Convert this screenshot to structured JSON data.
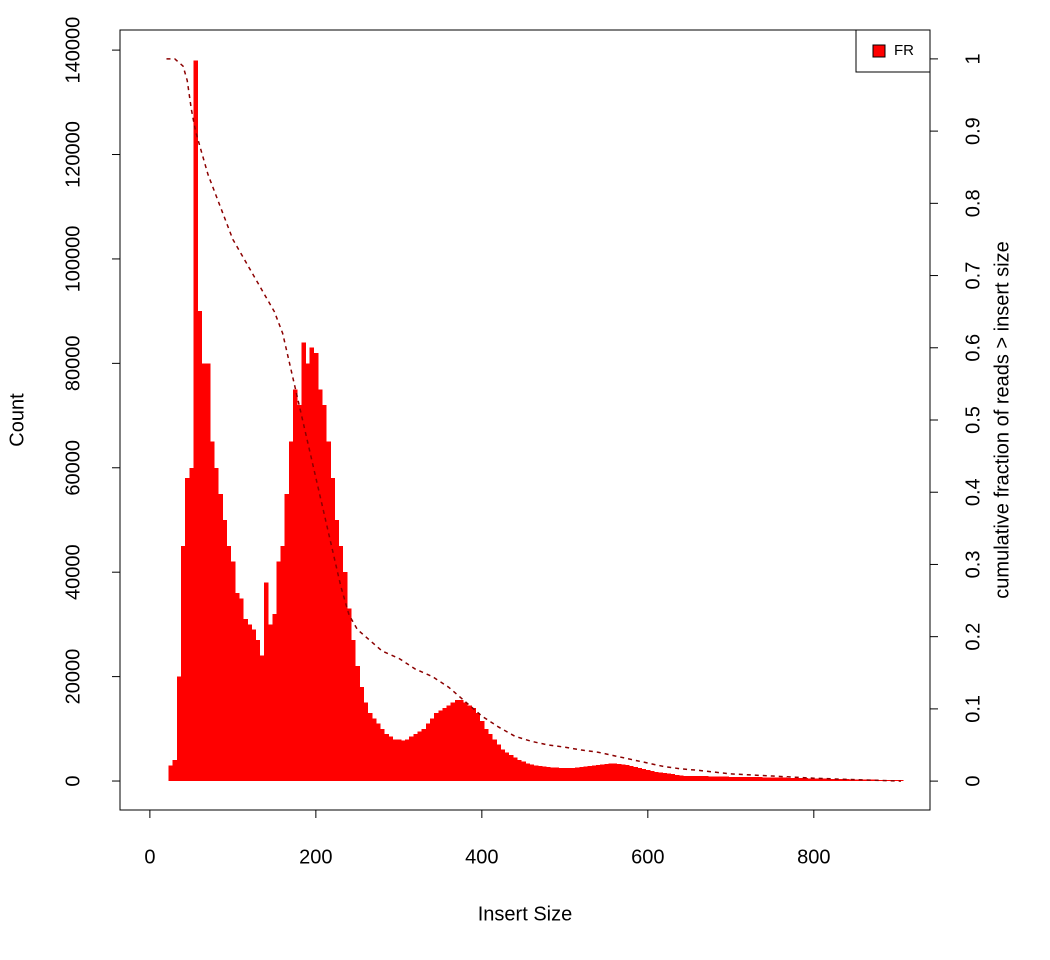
{
  "chart_data": {
    "type": "histogram",
    "x_label": "Insert Size",
    "y_label": "Count",
    "y2_label": "cumulative fraction of reads > insert size",
    "legend": "topright",
    "xlim": [
      -36,
      940
    ],
    "ylim": [
      -5550,
      143850
    ],
    "y2lim": [
      -0.04,
      1.04
    ],
    "xticks": [
      0,
      200,
      400,
      600,
      800
    ],
    "yticks": [
      0,
      20000,
      40000,
      60000,
      80000,
      100000,
      120000,
      140000
    ],
    "y2ticks": [
      0,
      0.1,
      0.2,
      0.3,
      0.4,
      0.5,
      0.6,
      0.7,
      0.8,
      0.9,
      1
    ],
    "series": [
      {
        "name": "FR",
        "color": "#ff0000",
        "x": [
          20,
          25,
          30,
          35,
          40,
          45,
          50,
          55,
          60,
          65,
          70,
          75,
          80,
          85,
          90,
          95,
          100,
          105,
          110,
          115,
          120,
          125,
          130,
          135,
          140,
          145,
          150,
          155,
          160,
          165,
          170,
          175,
          180,
          185,
          190,
          195,
          200,
          205,
          210,
          215,
          220,
          225,
          230,
          235,
          240,
          245,
          250,
          255,
          260,
          265,
          270,
          275,
          280,
          285,
          290,
          295,
          300,
          305,
          310,
          315,
          320,
          325,
          330,
          335,
          340,
          345,
          350,
          355,
          360,
          365,
          370,
          375,
          380,
          385,
          390,
          395,
          400,
          405,
          410,
          415,
          420,
          425,
          430,
          435,
          440,
          445,
          450,
          455,
          460,
          465,
          470,
          475,
          480,
          485,
          490,
          495,
          500,
          505,
          510,
          515,
          520,
          525,
          530,
          535,
          540,
          545,
          550,
          555,
          560,
          565,
          570,
          575,
          580,
          585,
          590,
          595,
          600,
          605,
          610,
          615,
          620,
          625,
          630,
          635,
          640,
          645,
          650,
          655,
          660,
          665,
          670,
          675,
          680,
          685,
          690,
          695,
          700,
          705,
          710,
          715,
          720,
          725,
          730,
          735,
          740,
          745,
          750,
          755,
          760,
          765,
          770,
          775,
          780,
          785,
          790,
          795,
          800,
          805,
          810,
          815,
          820,
          825,
          830,
          835,
          840,
          845,
          850,
          855,
          860,
          865,
          870,
          875,
          880,
          885,
          890,
          895,
          900,
          905
        ],
        "values": [
          0,
          3000,
          4000,
          20000,
          45000,
          58000,
          60000,
          138000,
          90000,
          80000,
          80000,
          65000,
          60000,
          55000,
          50000,
          45000,
          42000,
          36000,
          35000,
          31000,
          30000,
          29000,
          27000,
          24000,
          38000,
          30000,
          32000,
          42000,
          45000,
          55000,
          65000,
          75000,
          72000,
          84000,
          80000,
          83000,
          82000,
          75000,
          72000,
          65000,
          58000,
          50000,
          45000,
          40000,
          33000,
          27000,
          22000,
          18000,
          15000,
          13000,
          12000,
          11000,
          10000,
          9000,
          8500,
          8000,
          8000,
          7800,
          8000,
          8500,
          9000,
          9500,
          10000,
          11000,
          12000,
          13000,
          13500,
          14000,
          14500,
          15000,
          15500,
          15500,
          15000,
          14500,
          14000,
          13000,
          11500,
          10000,
          9000,
          8000,
          7000,
          6000,
          5500,
          5000,
          4500,
          4000,
          3700,
          3400,
          3200,
          3000,
          2900,
          2800,
          2700,
          2600,
          2600,
          2500,
          2500,
          2500,
          2500,
          2600,
          2700,
          2800,
          2900,
          3000,
          3100,
          3200,
          3300,
          3400,
          3400,
          3300,
          3200,
          3100,
          2900,
          2700,
          2500,
          2300,
          2100,
          1900,
          1700,
          1600,
          1500,
          1400,
          1300,
          1200,
          1100,
          1000,
          1000,
          980,
          960,
          940,
          920,
          900,
          880,
          860,
          840,
          820,
          800,
          790,
          780,
          770,
          760,
          750,
          740,
          730,
          720,
          710,
          700,
          680,
          660,
          640,
          620,
          600,
          580,
          560,
          540,
          520,
          500,
          480,
          460,
          440,
          420,
          400,
          380,
          360,
          340,
          320,
          300,
          290,
          280,
          270,
          260,
          250,
          240,
          230,
          220,
          210,
          200,
          190
        ]
      },
      {
        "color": "#8b0000",
        "axis": "y2",
        "dash": true,
        "x": [
          20,
          30,
          40,
          45,
          50,
          55,
          60,
          70,
          80,
          90,
          100,
          110,
          120,
          130,
          140,
          150,
          160,
          170,
          180,
          190,
          200,
          210,
          220,
          230,
          240,
          250,
          260,
          270,
          280,
          290,
          300,
          320,
          340,
          360,
          380,
          400,
          420,
          440,
          460,
          480,
          500,
          520,
          540,
          560,
          580,
          600,
          620,
          640,
          660,
          700,
          750,
          800,
          850,
          905
        ],
        "values": [
          1,
          1,
          0.99,
          0.97,
          0.93,
          0.9,
          0.88,
          0.84,
          0.81,
          0.78,
          0.75,
          0.73,
          0.71,
          0.69,
          0.67,
          0.65,
          0.62,
          0.57,
          0.52,
          0.47,
          0.42,
          0.37,
          0.32,
          0.27,
          0.23,
          0.21,
          0.2,
          0.19,
          0.18,
          0.175,
          0.17,
          0.155,
          0.145,
          0.13,
          0.11,
          0.09,
          0.075,
          0.062,
          0.055,
          0.05,
          0.047,
          0.043,
          0.04,
          0.035,
          0.03,
          0.025,
          0.02,
          0.017,
          0.015,
          0.01,
          0.007,
          0.004,
          0.002,
          0
        ]
      }
    ]
  }
}
